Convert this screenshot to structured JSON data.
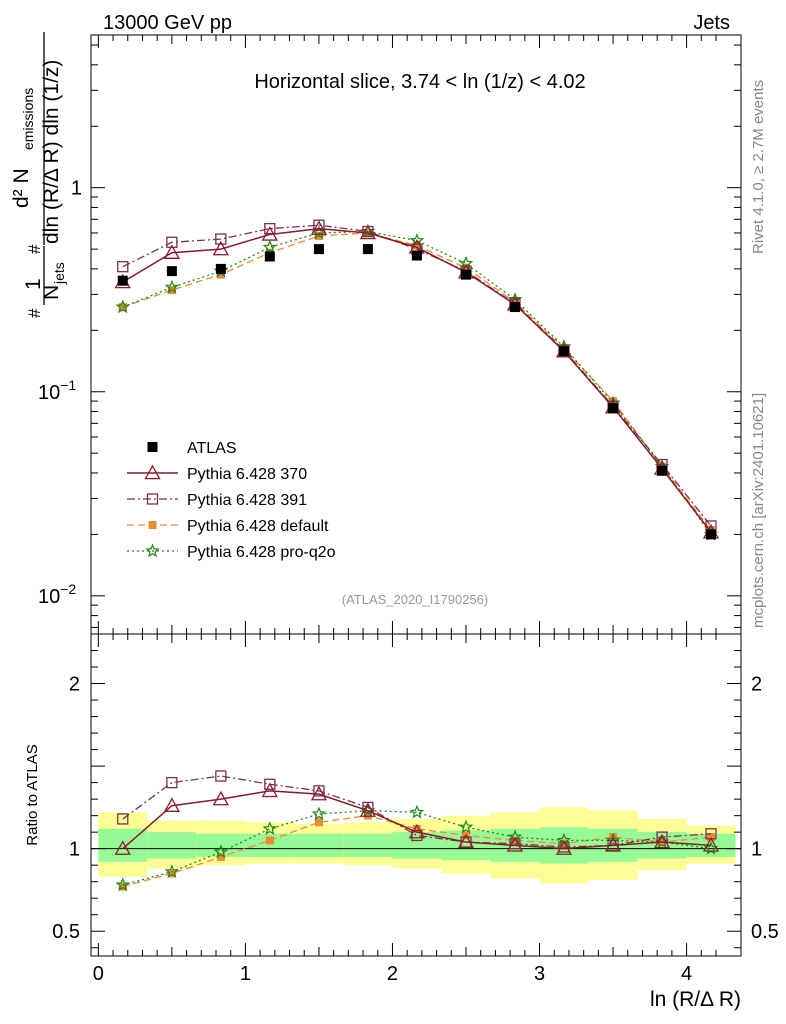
{
  "header": {
    "left": "13000 GeV pp",
    "right": "Jets"
  },
  "side": {
    "rivet": "Rivet 4.1.0, ≥ 2.7M events",
    "mcplots": "mcplots.cern.ch [arXiv:2401.10621]"
  },
  "chart_data": {
    "type": "line",
    "title": "Horizontal slice, 3.74 < ln (1/z) < 4.02",
    "analysis_tag": "(ATLAS_2020_I1790256)",
    "xlabel": "ln (R/Δ R)",
    "ylabel_main": "1/N_jets d²N_emissions / dln(R/ΔR) dln(1/z)",
    "ylabel_parts": {
      "one": "1",
      "njets": "N",
      "njets_sub": "jets",
      "num": "d² N",
      "num_sub": "emissions",
      "den": "dln (R/Δ R) dln (1/z)",
      "hash": "#"
    },
    "ylabel_ratio": "Ratio to ATLAS",
    "xlim": [
      -0.05,
      4.37
    ],
    "ylim_main": [
      0.0065,
      5.6
    ],
    "ylim_ratio": [
      0.35,
      2.3
    ],
    "x_ticks": [
      0,
      1,
      2,
      3,
      4
    ],
    "main_tick_labels": [
      {
        "value": 1,
        "base": "1",
        "exp": ""
      },
      {
        "value": 0.1,
        "base": "10",
        "exp": "−1"
      },
      {
        "value": 0.01,
        "base": "10",
        "exp": "−2"
      }
    ],
    "ratio_tick_labels": [
      {
        "value": 2,
        "label": "2"
      },
      {
        "value": 1,
        "label": "1"
      },
      {
        "value": 0.5,
        "label": "0.5"
      }
    ],
    "x": [
      0.166,
      0.5,
      0.833,
      1.166,
      1.5,
      1.833,
      2.166,
      2.5,
      2.833,
      3.166,
      3.5,
      3.833,
      4.166
    ],
    "bin_edges": [
      0,
      0.333,
      0.666,
      1.0,
      1.333,
      1.666,
      2.0,
      2.333,
      2.666,
      3.0,
      3.333,
      3.666,
      4.0,
      4.333
    ],
    "band_yellow": [
      [
        0.83,
        1.22
      ],
      [
        0.88,
        1.17
      ],
      [
        0.9,
        1.17
      ],
      [
        0.91,
        1.16
      ],
      [
        0.91,
        1.15
      ],
      [
        0.9,
        1.16
      ],
      [
        0.88,
        1.18
      ],
      [
        0.85,
        1.2
      ],
      [
        0.82,
        1.22
      ],
      [
        0.79,
        1.25
      ],
      [
        0.81,
        1.23
      ],
      [
        0.87,
        1.18
      ],
      [
        0.91,
        1.14
      ]
    ],
    "band_green": [
      [
        0.92,
        1.12
      ],
      [
        0.94,
        1.1
      ],
      [
        0.95,
        1.09
      ],
      [
        0.95,
        1.09
      ],
      [
        0.95,
        1.09
      ],
      [
        0.95,
        1.09
      ],
      [
        0.94,
        1.1
      ],
      [
        0.93,
        1.11
      ],
      [
        0.92,
        1.12
      ],
      [
        0.91,
        1.13
      ],
      [
        0.92,
        1.12
      ],
      [
        0.94,
        1.1
      ],
      [
        0.95,
        1.09
      ]
    ],
    "series": [
      {
        "name": "ATLAS",
        "key": "atlas",
        "color": "#000000",
        "values": [
          0.35,
          0.39,
          0.4,
          0.46,
          0.5,
          0.5,
          0.465,
          0.375,
          0.26,
          0.158,
          0.083,
          0.041,
          0.02
        ]
      },
      {
        "name": "Pythia 6.428 370",
        "key": "p370",
        "color": "#8b1a2a",
        "values": [
          0.345,
          0.48,
          0.5,
          0.59,
          0.63,
          0.6,
          0.51,
          0.385,
          0.268,
          0.158,
          0.084,
          0.042,
          0.0205
        ],
        "ratio": [
          1.0,
          1.26,
          1.3,
          1.35,
          1.33,
          1.23,
          1.1,
          1.04,
          1.02,
          1.0,
          1.02,
          1.04,
          1.02
        ]
      },
      {
        "name": "Pythia 6.428 391",
        "key": "p391",
        "color": "#7a3050",
        "values": [
          0.41,
          0.54,
          0.56,
          0.63,
          0.655,
          0.61,
          0.5,
          0.39,
          0.27,
          0.16,
          0.085,
          0.044,
          0.022
        ],
        "ratio": [
          1.18,
          1.4,
          1.44,
          1.39,
          1.35,
          1.25,
          1.08,
          1.04,
          1.03,
          1.01,
          1.02,
          1.07,
          1.09
        ]
      },
      {
        "name": "Pythia 6.428 default",
        "key": "pdef",
        "color": "#f08a30",
        "values": [
          0.26,
          0.315,
          0.375,
          0.48,
          0.58,
          0.6,
          0.52,
          0.405,
          0.275,
          0.163,
          0.09,
          0.043,
          0.021
        ],
        "ratio": [
          0.77,
          0.85,
          0.95,
          1.05,
          1.16,
          1.2,
          1.12,
          1.08,
          1.05,
          1.03,
          1.07,
          1.04,
          1.07
        ]
      },
      {
        "name": "Pythia 6.428 pro-q2o",
        "key": "pq2o",
        "color": "#1a8a1a",
        "values": [
          0.26,
          0.325,
          0.39,
          0.51,
          0.6,
          0.61,
          0.55,
          0.425,
          0.283,
          0.166,
          0.088,
          0.043,
          0.02
        ],
        "ratio": [
          0.78,
          0.86,
          0.98,
          1.12,
          1.21,
          1.23,
          1.22,
          1.13,
          1.07,
          1.05,
          1.05,
          1.04,
          1.0
        ]
      }
    ]
  }
}
